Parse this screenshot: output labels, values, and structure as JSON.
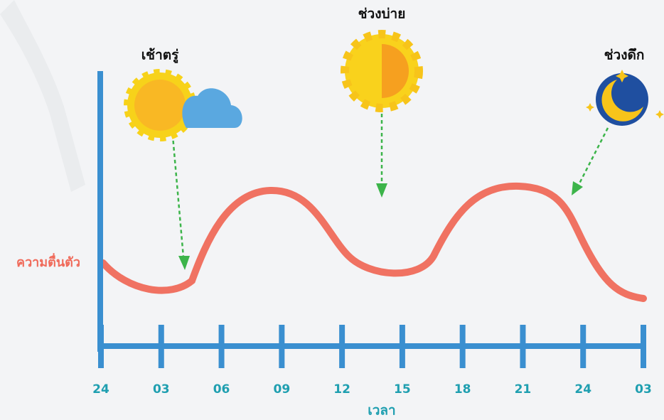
{
  "chart_data": {
    "type": "line",
    "annotations": [
      "เช้าตรู่",
      "ช่วงบ่าย",
      "ช่วงดึก"
    ],
    "y_label": "ความตื่นตัว",
    "x_label": "เวลา",
    "categories": [
      "24",
      "03",
      "06",
      "09",
      "12",
      "15",
      "18",
      "21",
      "24",
      "03"
    ],
    "axis_color": "#3a8fd0",
    "tick_label_color": "#1f9fb0"
  }
}
